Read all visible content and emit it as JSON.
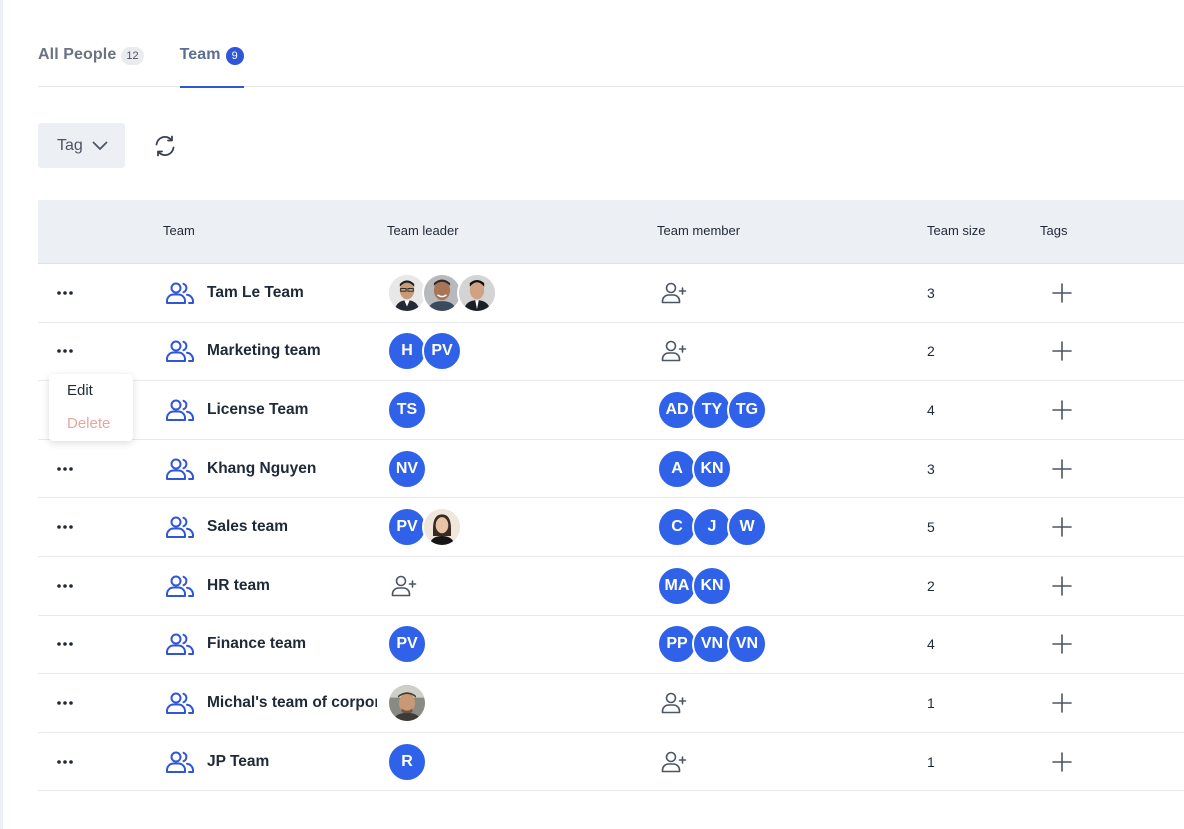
{
  "tabs": [
    {
      "label": "All People",
      "count": "12",
      "active": false
    },
    {
      "label": "Team",
      "count": "9",
      "active": true
    }
  ],
  "toolbar": {
    "tag_label": "Tag",
    "tag_icon": "chevron-down-icon",
    "refresh_icon": "refresh-icon"
  },
  "table": {
    "headers": {
      "team": "Team",
      "leader": "Team leader",
      "member": "Team member",
      "size": "Team size",
      "tags": "Tags"
    },
    "rows": [
      {
        "name": "Tam Le Team",
        "leaders": [
          "photo:man-glasses",
          "photo:man-smiling",
          "photo:man-suit"
        ],
        "members": [],
        "size": "3"
      },
      {
        "name": "Marketing team",
        "leaders": [
          "H",
          "PV"
        ],
        "members": [],
        "size": "2"
      },
      {
        "name": "License Team",
        "leaders": [
          "TS"
        ],
        "members": [
          "AD",
          "TY",
          "TG"
        ],
        "size": "4"
      },
      {
        "name": "Khang Nguyen",
        "leaders": [
          "NV"
        ],
        "members": [
          "A",
          "KN"
        ],
        "size": "3"
      },
      {
        "name": "Sales team",
        "leaders": [
          "PV",
          "photo:woman"
        ],
        "members": [
          "C",
          "J",
          "W"
        ],
        "size": "5"
      },
      {
        "name": "HR team",
        "leaders": [],
        "members": [
          "MA",
          "KN"
        ],
        "size": "2"
      },
      {
        "name": "Finance team",
        "leaders": [
          "PV"
        ],
        "members": [
          "PP",
          "VN",
          "VN"
        ],
        "size": "4"
      },
      {
        "name": "Michal's team of corporate",
        "leaders": [
          "photo:man-cap"
        ],
        "members": [],
        "size": "1"
      },
      {
        "name": "JP Team",
        "leaders": [
          "R"
        ],
        "members": [],
        "size": "1"
      }
    ]
  },
  "context_menu": {
    "edit": "Edit",
    "delete": "Delete"
  },
  "colors": {
    "accent": "#2f56d6",
    "avatar": "#2f62e8",
    "delete": "#eaa59b",
    "header_bg": "#eceff3"
  }
}
